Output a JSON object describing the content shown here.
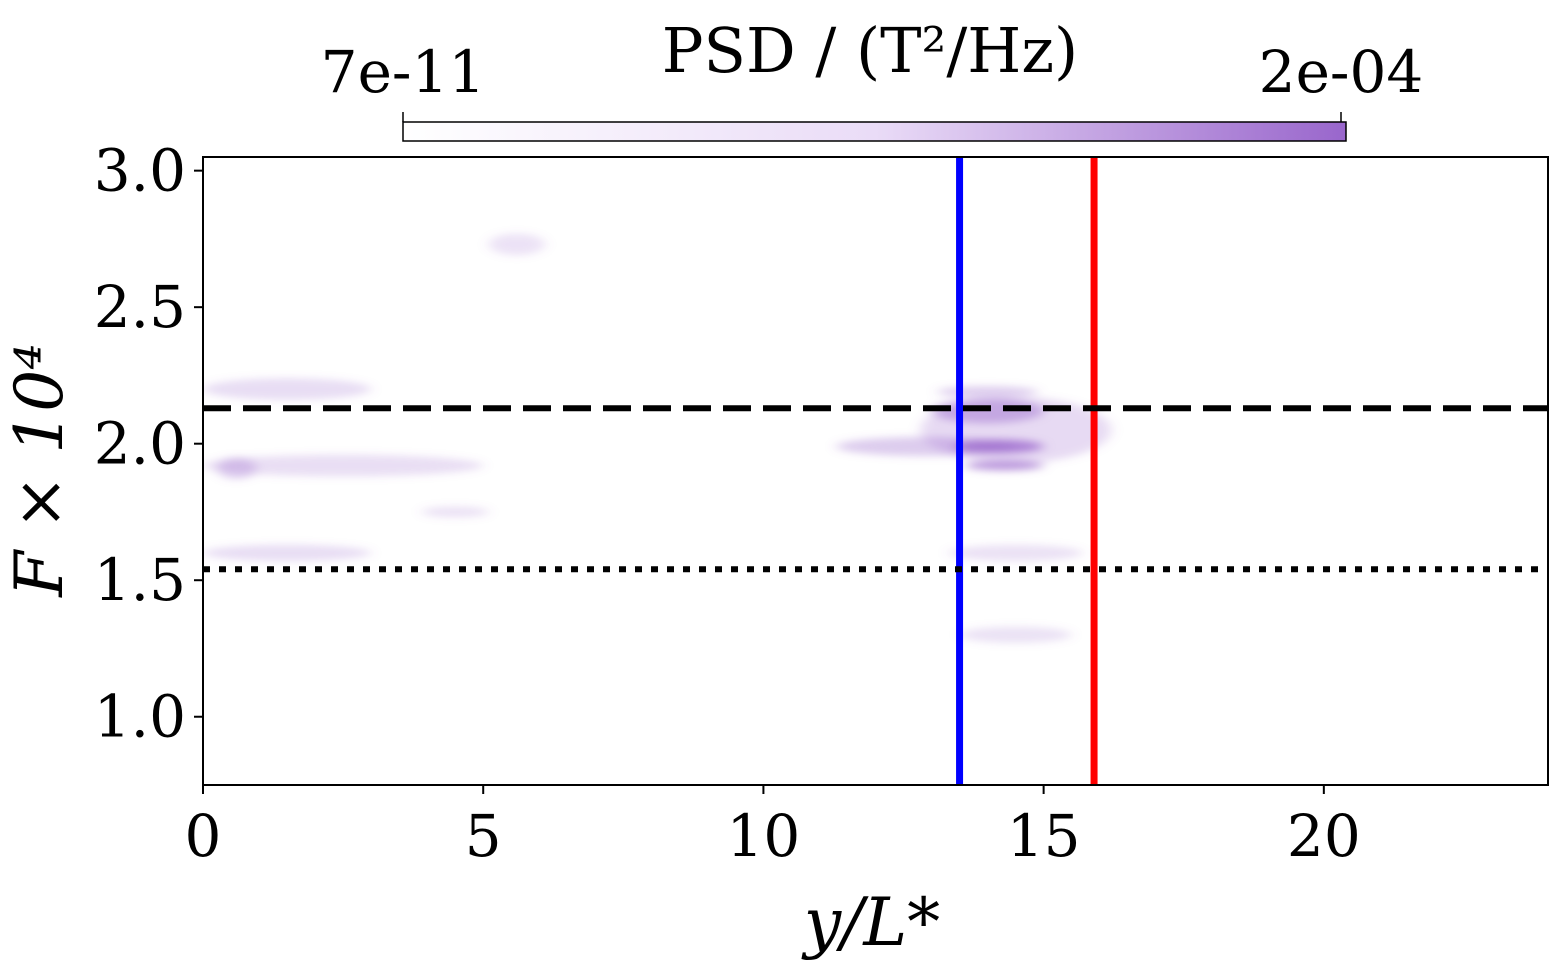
{
  "chart_data": {
    "type": "heatmap",
    "title": "",
    "xlabel": "y/L*",
    "ylabel": "F × 10⁴",
    "xlim": [
      0,
      24
    ],
    "ylim": [
      0.75,
      3.05
    ],
    "xticks": [
      0,
      5,
      10,
      15,
      20
    ],
    "xtick_labels": [
      "0",
      "5",
      "10",
      "15",
      "20"
    ],
    "yticks": [
      1.0,
      1.5,
      2.0,
      2.5,
      3.0
    ],
    "ytick_labels": [
      "1.0",
      "1.5",
      "2.0",
      "2.5",
      "3.0"
    ],
    "colorbar": {
      "label": "PSD / (T²/Hz)",
      "min_label": "7e-11",
      "max_label": "2e-04",
      "orientation": "horizontal",
      "placement": "top",
      "color_low": "#ffffff",
      "color_high": "#9966cc"
    },
    "reference_lines": [
      {
        "orientation": "vertical",
        "value": 13.5,
        "color": "#0000ff",
        "style": "solid"
      },
      {
        "orientation": "vertical",
        "value": 15.9,
        "color": "#ff0000",
        "style": "solid"
      },
      {
        "orientation": "horizontal",
        "value": 2.13,
        "color": "#000000",
        "style": "dashed"
      },
      {
        "orientation": "horizontal",
        "value": 1.54,
        "color": "#000000",
        "style": "dotted"
      }
    ],
    "intensity_features": [
      {
        "y_center": 14.2,
        "f_center": 1.99,
        "y_spread": 0.8,
        "f_spread": 0.025,
        "intensity": 1.0
      },
      {
        "y_center": 14.3,
        "f_center": 1.92,
        "y_spread": 0.7,
        "f_spread": 0.018,
        "intensity": 0.85
      },
      {
        "y_center": 14.0,
        "f_center": 2.12,
        "y_spread": 1.0,
        "f_spread": 0.045,
        "intensity": 0.5
      },
      {
        "y_center": 14.0,
        "f_center": 2.19,
        "y_spread": 0.9,
        "f_spread": 0.02,
        "intensity": 0.3
      },
      {
        "y_center": 12.9,
        "f_center": 1.99,
        "y_spread": 1.6,
        "f_spread": 0.035,
        "intensity": 0.3
      },
      {
        "y_center": 14.5,
        "f_center": 2.05,
        "y_spread": 1.7,
        "f_spread": 0.12,
        "intensity": 0.15
      },
      {
        "y_center": 14.5,
        "f_center": 1.6,
        "y_spread": 1.2,
        "f_spread": 0.03,
        "intensity": 0.08
      },
      {
        "y_center": 14.5,
        "f_center": 1.3,
        "y_spread": 1.0,
        "f_spread": 0.03,
        "intensity": 0.07
      },
      {
        "y_center": 0.6,
        "f_center": 1.91,
        "y_spread": 0.35,
        "f_spread": 0.04,
        "intensity": 0.25
      },
      {
        "y_center": 1.5,
        "f_center": 2.2,
        "y_spread": 1.5,
        "f_spread": 0.04,
        "intensity": 0.12
      },
      {
        "y_center": 1.5,
        "f_center": 1.6,
        "y_spread": 1.5,
        "f_spread": 0.03,
        "intensity": 0.12
      },
      {
        "y_center": 2.5,
        "f_center": 1.92,
        "y_spread": 2.5,
        "f_spread": 0.04,
        "intensity": 0.1
      },
      {
        "y_center": 4.5,
        "f_center": 1.75,
        "y_spread": 0.6,
        "f_spread": 0.02,
        "intensity": 0.08
      },
      {
        "y_center": 5.6,
        "f_center": 2.73,
        "y_spread": 0.5,
        "f_spread": 0.04,
        "intensity": 0.06
      }
    ]
  }
}
